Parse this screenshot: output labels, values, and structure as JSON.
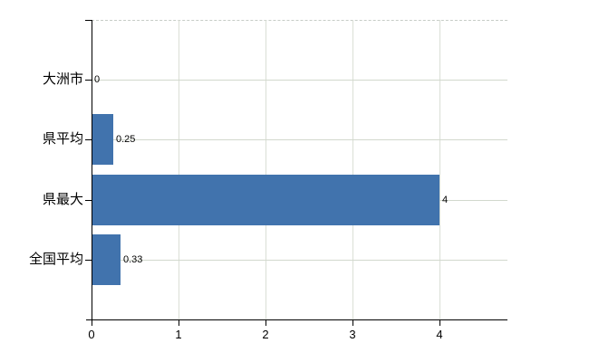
{
  "chart_data": {
    "type": "bar",
    "orientation": "horizontal",
    "title": "",
    "xlabel": "",
    "ylabel": "",
    "categories": [
      "大洲市",
      "県平均",
      "県最大",
      "全国平均"
    ],
    "values": [
      0,
      0.25,
      4,
      0.33
    ],
    "value_labels": [
      "0",
      "0.25",
      "4",
      "0.33"
    ],
    "x_ticks": [
      0,
      1,
      2,
      3,
      4
    ],
    "x_tick_labels": [
      "0",
      "1",
      "2",
      "3",
      "4"
    ],
    "xlim": [
      0,
      4.78
    ],
    "grid": true,
    "legend": false,
    "bar_color": "#4173ad"
  },
  "colors": {
    "bar": "#4173ad",
    "horizontal_grid": "#d2d8cd",
    "vertical_grid": "#dadfd6",
    "top_border": "#c6ccc6",
    "axis": "#000000",
    "background": "#ffffff",
    "text": "#000000"
  }
}
